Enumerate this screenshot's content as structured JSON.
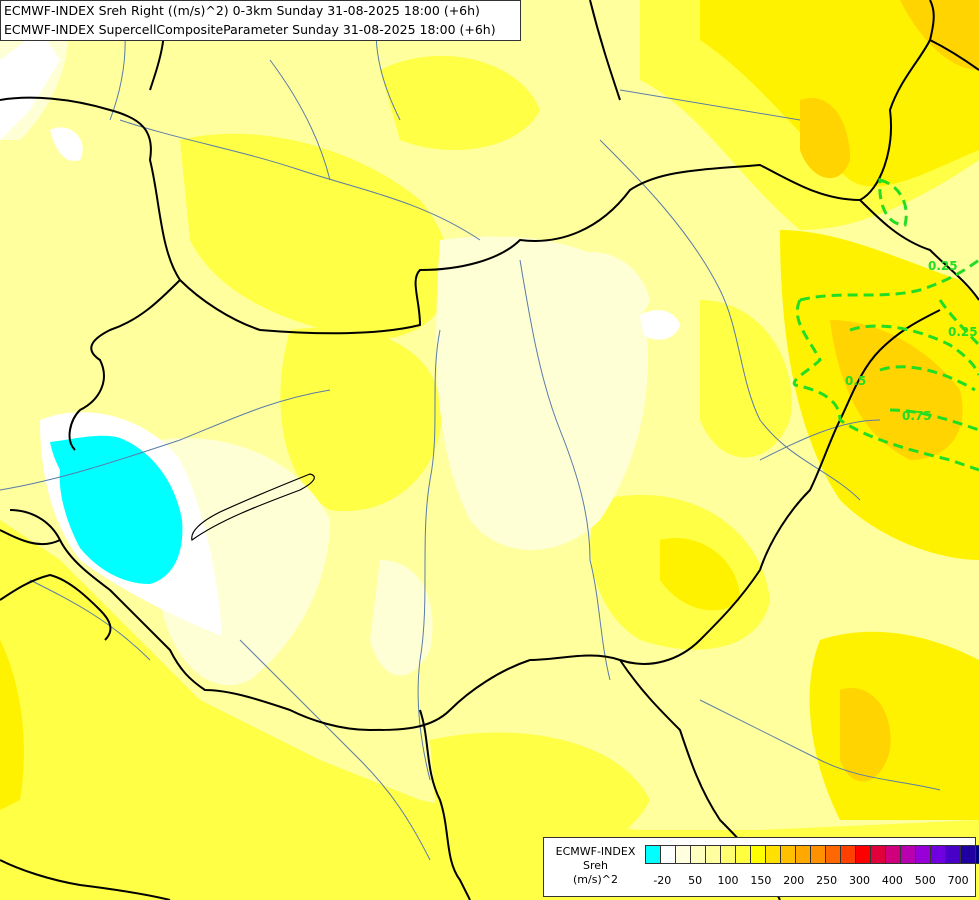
{
  "title": {
    "line1": "ECMWF-INDEX Sreh Right ((m/s)^2) 0-3km Sunday 31-08-2025 18:00 (+6h)",
    "line2": "ECMWF-INDEX SupercellCompositeParameter Sunday 31-08-2025 18:00 (+6h)"
  },
  "legend": {
    "line1": "ECMWF-INDEX",
    "line2": "Sreh",
    "line3": "(m/s)^2",
    "colors": [
      "#00ffff",
      "#ffffff",
      "#ffffe0",
      "#ffffc0",
      "#ffffa0",
      "#ffff70",
      "#ffff40",
      "#ffff00",
      "#ffe000",
      "#ffc000",
      "#ffa800",
      "#ff9000",
      "#ff6800",
      "#ff4000",
      "#ff0000",
      "#e0003c",
      "#d0007c",
      "#b800b0",
      "#9800d8",
      "#7000e0",
      "#4800c8",
      "#2000a0",
      "#000080"
    ],
    "ticks": [
      {
        "label": "-20",
        "pos": 0.05
      },
      {
        "label": "50",
        "pos": 0.145
      },
      {
        "label": "100",
        "pos": 0.24
      },
      {
        "label": "150",
        "pos": 0.335
      },
      {
        "label": "200",
        "pos": 0.43
      },
      {
        "label": "250",
        "pos": 0.525
      },
      {
        "label": "300",
        "pos": 0.62
      },
      {
        "label": "400",
        "pos": 0.715
      },
      {
        "label": "500",
        "pos": 0.81
      },
      {
        "label": "700",
        "pos": 0.905
      }
    ]
  },
  "contour_labels": [
    "0.25",
    "0.25",
    "0.5",
    "0.75"
  ],
  "colors": {
    "background": "#ffff9e",
    "zone_bright": "#ffff40",
    "zone_yellow": "#ffef00",
    "zone_orange": "#ffd000",
    "zone_pale": "#ffffd8",
    "zone_white": "#ffffff",
    "zone_cyan": "#00ffff",
    "contour": "#22dd22",
    "border": "#000000",
    "river": "#5a7ca8"
  }
}
